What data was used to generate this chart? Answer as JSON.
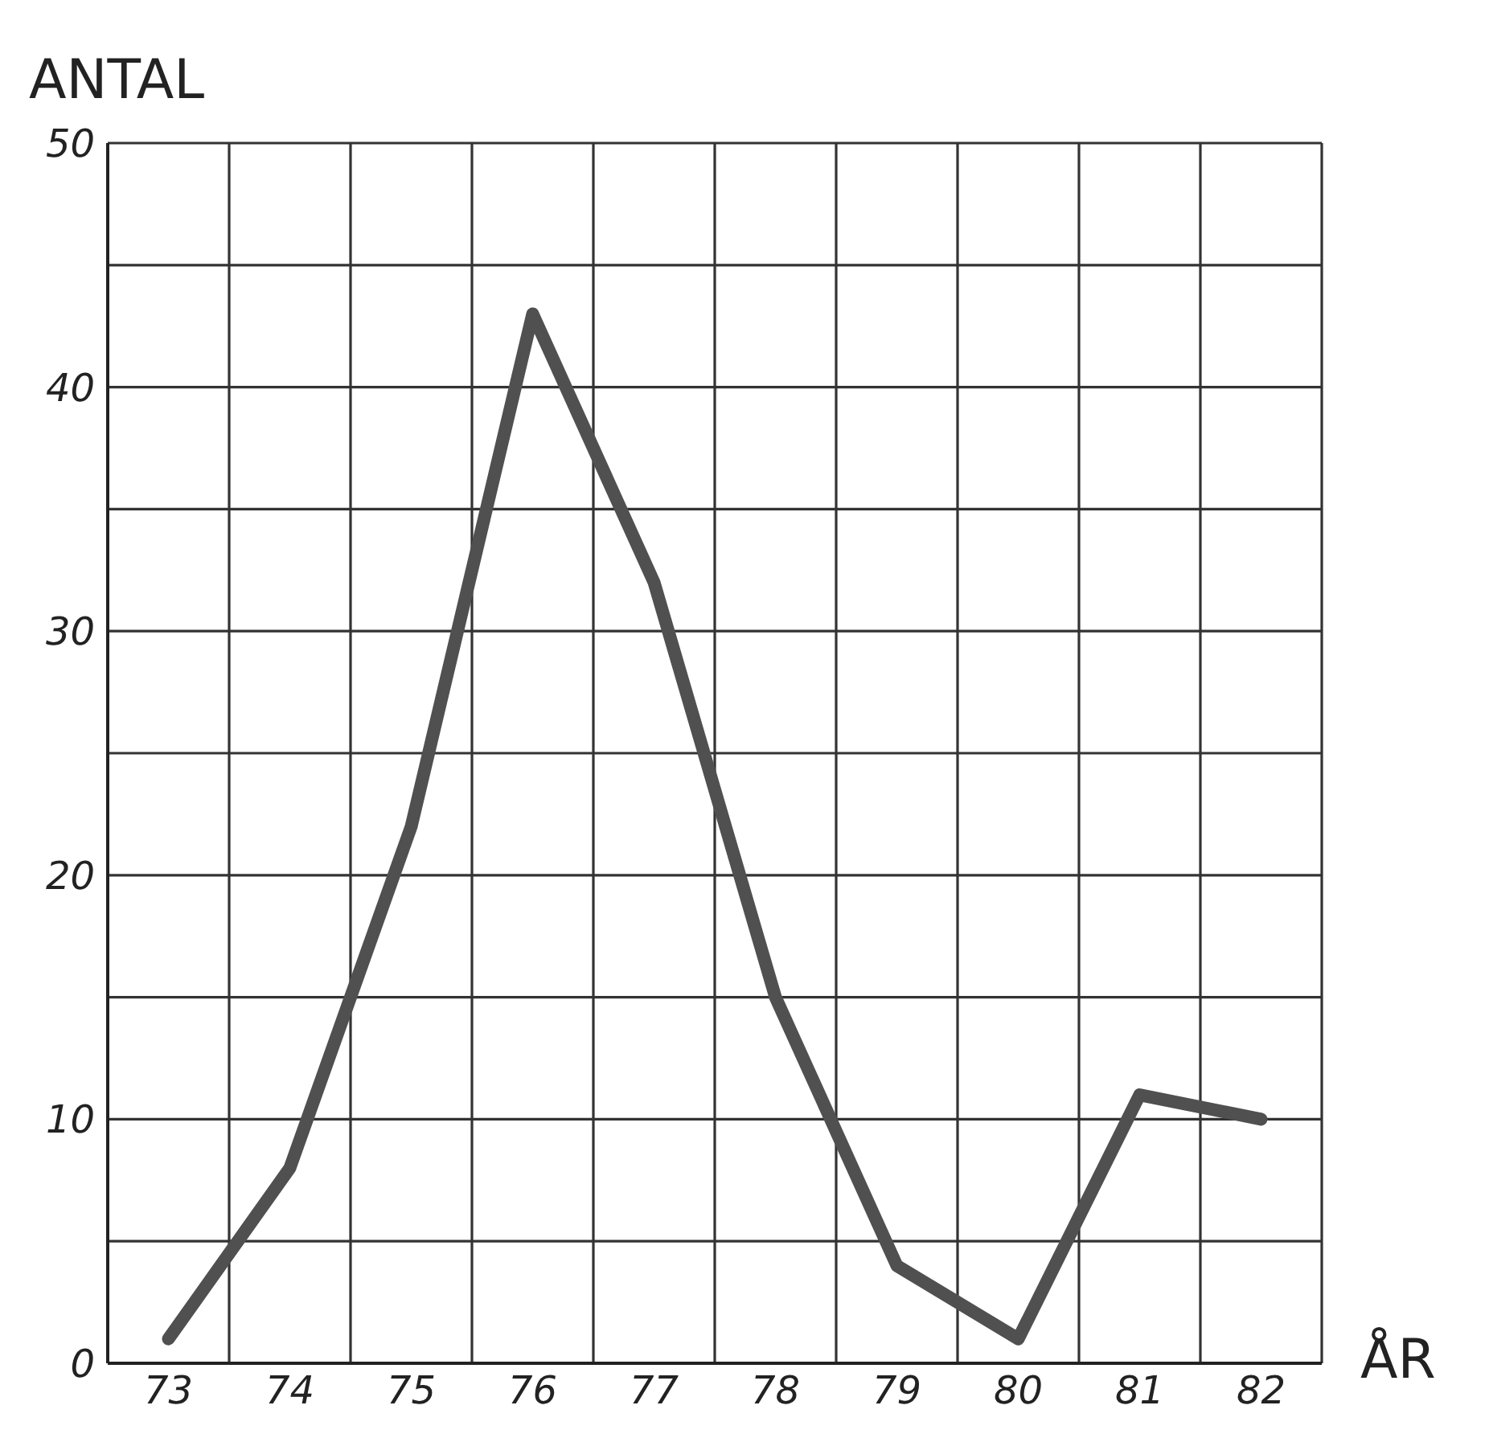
{
  "chart_data": {
    "type": "line",
    "xlabel": "ÅR",
    "ylabel": "ANTAL",
    "x": [
      73,
      74,
      75,
      76,
      77,
      78,
      79,
      80,
      81,
      82
    ],
    "series": [
      {
        "color": "#505050",
        "values": [
          1,
          8,
          22,
          43,
          32,
          15,
          4,
          1,
          11,
          10
        ]
      }
    ],
    "xlim": [
      72.5,
      82.5
    ],
    "xticks": [
      73,
      {
        "value": 73.5,
        "label": null
      },
      74,
      {
        "value": 74.5,
        "label": null
      },
      75,
      {
        "value": 75.5,
        "label": null
      },
      76,
      {
        "value": 76.5,
        "label": null
      },
      77,
      {
        "value": 77.5,
        "label": null
      },
      78,
      {
        "value": 78.5,
        "label": null
      },
      79,
      {
        "value": 79.5,
        "label": null
      },
      80,
      {
        "value": 80.5,
        "label": null
      },
      81,
      {
        "value": 81.5,
        "label": null
      },
      82,
      {
        "value": 82.5,
        "label": null
      }
    ],
    "ylim": [
      0,
      50
    ],
    "yticks": [
      0,
      {
        "value": 5,
        "label": null
      },
      10,
      {
        "value": 15,
        "label": null
      },
      20,
      {
        "value": 25,
        "label": null
      },
      30,
      {
        "value": 35,
        "label": null
      },
      40,
      {
        "value": 45,
        "label": null
      },
      50
    ],
    "grid": true,
    "marker": "none",
    "line_style": "solid"
  }
}
